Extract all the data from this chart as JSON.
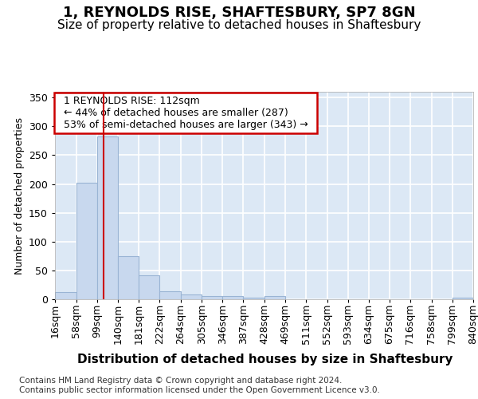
{
  "title": "1, REYNOLDS RISE, SHAFTESBURY, SP7 8GN",
  "subtitle": "Size of property relative to detached houses in Shaftesbury",
  "xlabel": "Distribution of detached houses by size in Shaftesbury",
  "ylabel": "Number of detached properties",
  "footer_line1": "Contains HM Land Registry data © Crown copyright and database right 2024.",
  "footer_line2": "Contains public sector information licensed under the Open Government Licence v3.0.",
  "annotation_line1": "1 REYNOLDS RISE: 112sqm",
  "annotation_line2": "← 44% of detached houses are smaller (287)",
  "annotation_line3": "53% of semi-detached houses are larger (343) →",
  "bin_edges": [
    16,
    58,
    99,
    140,
    181,
    222,
    264,
    305,
    346,
    387,
    428,
    469,
    511,
    552,
    593,
    634,
    675,
    716,
    758,
    799,
    840
  ],
  "bar_heights": [
    12,
    202,
    282,
    75,
    41,
    14,
    9,
    6,
    5,
    3,
    5,
    0,
    0,
    0,
    0,
    0,
    0,
    0,
    0,
    3
  ],
  "bar_color": "#c8d8ee",
  "bar_edge_color": "#9ab4d4",
  "vline_color": "#cc0000",
  "vline_x": 112,
  "ylim": [
    0,
    360
  ],
  "yticks": [
    0,
    50,
    100,
    150,
    200,
    250,
    300,
    350
  ],
  "fig_bg_color": "#ffffff",
  "plot_bg_color": "#dce8f5",
  "grid_color": "#ffffff",
  "title_fontsize": 13,
  "subtitle_fontsize": 11,
  "xlabel_fontsize": 11,
  "ylabel_fontsize": 9,
  "tick_fontsize": 9,
  "annotation_fontsize": 9,
  "footer_fontsize": 7.5
}
